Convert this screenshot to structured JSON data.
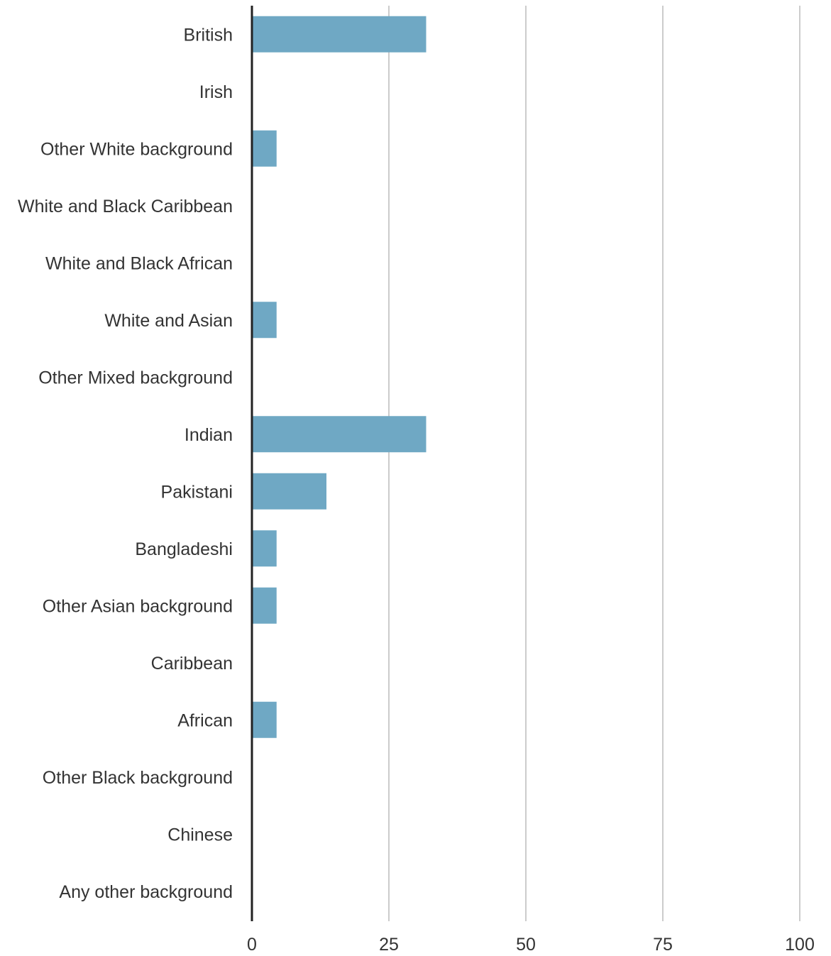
{
  "chart_data": {
    "type": "bar",
    "orientation": "horizontal",
    "title": "",
    "xlabel": "",
    "ylabel": "",
    "categories": [
      "British",
      "Irish",
      "Other White background",
      "White and Black Caribbean",
      "White and Black African",
      "White and Asian",
      "Other Mixed background",
      "Indian",
      "Pakistani",
      "Bangladeshi",
      "Other Asian background",
      "Caribbean",
      "African",
      "Other Black background",
      "Chinese",
      "Any other background"
    ],
    "values": [
      31.8,
      0,
      4.5,
      0,
      0,
      4.5,
      0,
      31.8,
      13.6,
      4.5,
      4.5,
      0,
      4.5,
      0,
      0,
      0
    ],
    "xlim": [
      0,
      100
    ],
    "xticks": [
      "0",
      "25",
      "50",
      "75",
      "100"
    ],
    "grid": "vertical",
    "legend": "none",
    "colors": {
      "bar": "#6fa8c4",
      "grid": "#cccccc",
      "axis": "#222222",
      "text": "#333333"
    }
  }
}
